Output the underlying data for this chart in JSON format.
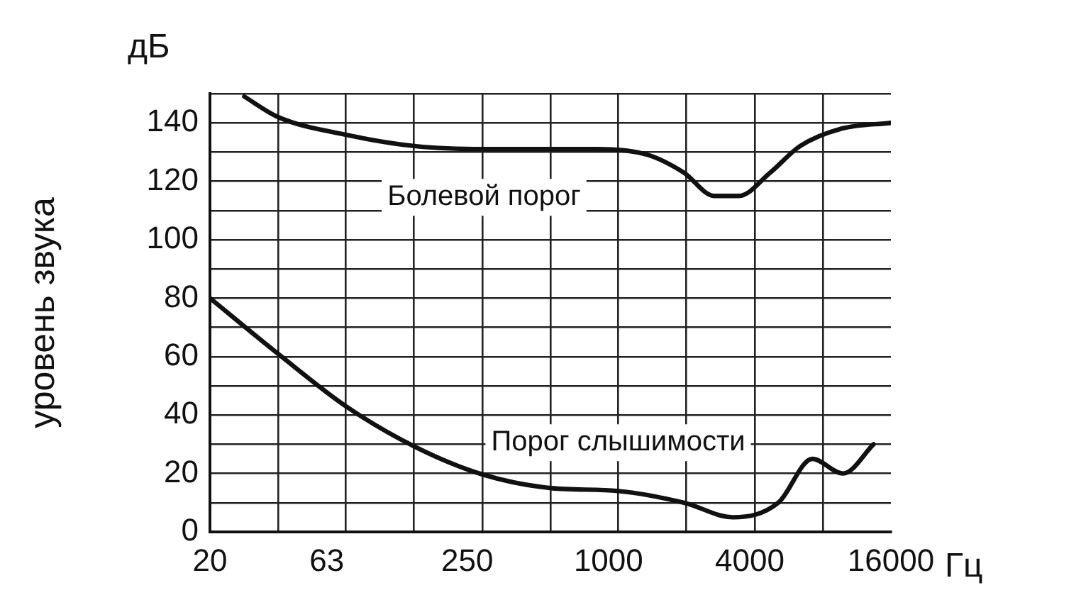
{
  "chart_data": {
    "type": "line",
    "xlabel": "Гц",
    "ylabel": "уровень звука",
    "annotations": [
      "дБ"
    ],
    "log": "x",
    "grid": true,
    "legend": false,
    "marker": "none",
    "line_style": "solid",
    "xlim": [
      20,
      16000
    ],
    "xticks": [
      20,
      {
        "value": 39,
        "label": null
      },
      63,
      {
        "value": 76,
        "label": null
      },
      {
        "value": 148,
        "label": null
      },
      250,
      {
        "value": 290,
        "label": null
      },
      {
        "value": 565,
        "label": null
      },
      1000,
      {
        "value": 1100,
        "label": null
      },
      {
        "value": 2150,
        "label": null
      },
      4000,
      {
        "value": 4200,
        "label": null
      },
      {
        "value": 8200,
        "label": null
      },
      16000
    ],
    "ylim": [
      0,
      150
    ],
    "yticks": [
      0,
      {
        "value": 10,
        "label": null
      },
      20,
      {
        "value": 30,
        "label": null
      },
      40,
      {
        "value": 50,
        "label": null
      },
      60,
      {
        "value": 70,
        "label": null
      },
      80,
      {
        "value": 90,
        "label": null
      },
      100,
      {
        "value": 110,
        "label": null
      },
      120,
      {
        "value": 130,
        "label": null
      },
      140,
      {
        "value": 150,
        "label": null
      }
    ],
    "series": [
      {
        "name": "Болевой порог",
        "color": "#111111",
        "x": [
          28,
          39,
          75,
          151,
          295,
          896,
          1475,
          2092,
          2825,
          3600,
          4900,
          6550,
          9850,
          16000
        ],
        "values": [
          149,
          142,
          136,
          132,
          131,
          131,
          129,
          123,
          115,
          115,
          123,
          132,
          138,
          140
        ]
      },
      {
        "name": "Порог слышимости",
        "color": "#111111",
        "x": [
          20,
          39,
          76,
          151,
          295,
          570,
          1100,
          2100,
          3400,
          5300,
          7400,
          10000,
          13500
        ],
        "values": [
          80,
          61,
          43,
          29,
          19.5,
          15,
          14,
          10,
          5,
          10,
          25,
          20,
          30
        ]
      }
    ]
  }
}
